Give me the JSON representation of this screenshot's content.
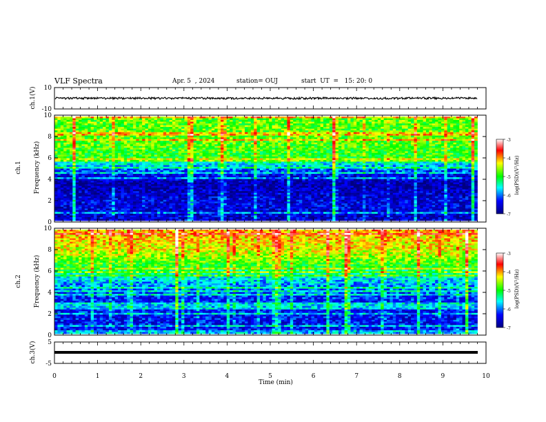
{
  "header": {
    "title": "VLF Spectra",
    "date": "Apr. 5  , 2024",
    "station": "station= OUJ",
    "start": "start  UT  =   15: 20: 0"
  },
  "panels": {
    "ch1_wave": {
      "ylabel": "ch.1(V)",
      "yticks": [
        "10",
        "-10"
      ]
    },
    "ch1_spec": {
      "ylabel_top": "ch.1",
      "ylabel": "Frequency (kHz)",
      "yticks": [
        "0",
        "2",
        "4",
        "6",
        "8",
        "10"
      ],
      "cbar_label": "log(PSD)(V²/Hz)",
      "cbar_ticks": [
        "-3",
        "-4",
        "-5",
        "-6",
        "-7"
      ]
    },
    "ch2_spec": {
      "ylabel_top": "ch.2",
      "ylabel": "Frequency (kHz)",
      "yticks": [
        "0",
        "2",
        "4",
        "6",
        "8",
        "10"
      ],
      "cbar_label": "log(PSD)(V²/Hz)",
      "cbar_ticks": [
        "-3",
        "-4",
        "-5",
        "-6",
        "-7"
      ]
    },
    "ch3_wave": {
      "ylabel": "ch.3(V)",
      "yticks": [
        "5",
        "-5"
      ]
    }
  },
  "chart_data": {
    "type": "heatmap",
    "title": "VLF Spectra",
    "xlabel": "Time (min)",
    "xticks": [
      "0",
      "1",
      "2",
      "3",
      "4",
      "5",
      "6",
      "7",
      "8",
      "9",
      "10"
    ],
    "xlim": [
      0,
      10
    ],
    "data_end_min": 9.8,
    "freq_range_khz": [
      0,
      10
    ],
    "colorbar_range": [
      -7,
      -3
    ],
    "colormap": [
      "#000080",
      "#0000ff",
      "#00ffff",
      "#00ff00",
      "#ffff00",
      "#ff0000",
      "#ffffff"
    ],
    "ch1_psd_profile": [
      {
        "f": 0,
        "log_psd": -6.6
      },
      {
        "f": 2,
        "log_psd": -6.5
      },
      {
        "f": 3.5,
        "log_psd": -6.8
      },
      {
        "f": 4.5,
        "log_psd": -6.4
      },
      {
        "f": 5.5,
        "log_psd": -5.6
      },
      {
        "f": 6,
        "log_psd": -5.0
      },
      {
        "f": 8,
        "log_psd": -4.8
      },
      {
        "f": 10,
        "log_psd": -4.8
      }
    ],
    "ch2_psd_profile": [
      {
        "f": 0,
        "log_psd": -6.4
      },
      {
        "f": 2,
        "log_psd": -6.4
      },
      {
        "f": 4,
        "log_psd": -6.2
      },
      {
        "f": 5.5,
        "log_psd": -5.6
      },
      {
        "f": 6.5,
        "log_psd": -5.0
      },
      {
        "f": 8,
        "log_psd": -4.4
      },
      {
        "f": 10,
        "log_psd": -4.1
      }
    ]
  }
}
